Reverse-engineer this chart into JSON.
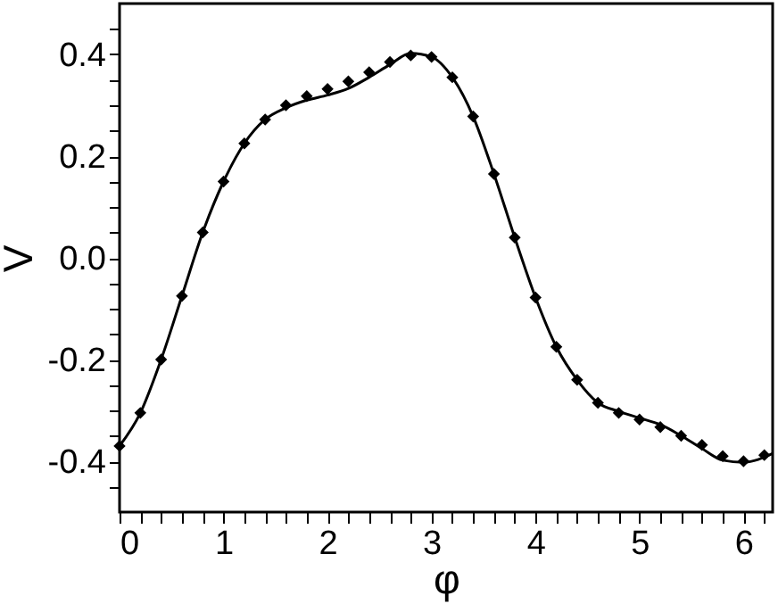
{
  "chart_data": {
    "type": "scatter",
    "xlabel": "φ",
    "ylabel": "V",
    "xlim": [
      0,
      6.28
    ],
    "ylim": [
      -0.5,
      0.5
    ],
    "xticks": [
      0,
      {
        "value": 0.2,
        "label": null
      },
      {
        "value": 0.4,
        "label": null
      },
      {
        "value": 0.6,
        "label": null
      },
      {
        "value": 0.8,
        "label": null
      },
      1,
      {
        "value": 1.2,
        "label": null
      },
      {
        "value": 1.4,
        "label": null
      },
      {
        "value": 1.6,
        "label": null
      },
      {
        "value": 1.8,
        "label": null
      },
      2,
      {
        "value": 2.2,
        "label": null
      },
      {
        "value": 2.4,
        "label": null
      },
      {
        "value": 2.6,
        "label": null
      },
      {
        "value": 2.8,
        "label": null
      },
      3,
      {
        "value": 3.2,
        "label": null
      },
      {
        "value": 3.4,
        "label": null
      },
      {
        "value": 3.6,
        "label": null
      },
      {
        "value": 3.8,
        "label": null
      },
      4,
      {
        "value": 4.2,
        "label": null
      },
      {
        "value": 4.4,
        "label": null
      },
      {
        "value": 4.6,
        "label": null
      },
      {
        "value": 4.8,
        "label": null
      },
      5,
      {
        "value": 5.2,
        "label": null
      },
      {
        "value": 5.4,
        "label": null
      },
      {
        "value": 5.6,
        "label": null
      },
      {
        "value": 5.8,
        "label": null
      },
      6,
      {
        "value": 6.2,
        "label": null
      }
    ],
    "yticks": [
      {
        "value": -0.45,
        "label": null
      },
      {
        "value": -0.4,
        "label": "-0.4"
      },
      {
        "value": -0.35,
        "label": null
      },
      {
        "value": -0.3,
        "label": null
      },
      {
        "value": -0.25,
        "label": null
      },
      {
        "value": -0.2,
        "label": "-0.2"
      },
      {
        "value": -0.15,
        "label": null
      },
      {
        "value": -0.1,
        "label": null
      },
      {
        "value": -0.05,
        "label": null
      },
      {
        "value": 0,
        "label": "0.0"
      },
      {
        "value": 0.05,
        "label": null
      },
      {
        "value": 0.1,
        "label": null
      },
      {
        "value": 0.15,
        "label": null
      },
      {
        "value": 0.2,
        "label": "0.2"
      },
      {
        "value": 0.25,
        "label": null
      },
      {
        "value": 0.3,
        "label": null
      },
      {
        "value": 0.35,
        "label": null
      },
      {
        "value": 0.4,
        "label": "0.4"
      },
      {
        "value": 0.45,
        "label": null
      }
    ],
    "series": [
      {
        "marker": "diamond",
        "color": "#000000",
        "x": [
          0,
          0.2,
          0.4,
          0.6,
          0.8,
          1.0,
          1.2,
          1.4,
          1.6,
          1.8,
          2.0,
          2.2,
          2.4,
          2.6,
          2.8,
          3.0,
          3.2,
          3.4,
          3.6,
          3.8,
          4.0,
          4.2,
          4.4,
          4.6,
          4.8,
          5.0,
          5.2,
          5.4,
          5.6,
          5.8,
          6.0,
          6.2
        ],
        "values": [
          -0.37,
          -0.305,
          -0.2,
          -0.075,
          0.05,
          0.15,
          0.225,
          0.272,
          0.3,
          0.318,
          0.332,
          0.347,
          0.365,
          0.385,
          0.398,
          0.395,
          0.355,
          0.278,
          0.165,
          0.04,
          -0.078,
          -0.175,
          -0.24,
          -0.285,
          -0.305,
          -0.318,
          -0.333,
          -0.35,
          -0.368,
          -0.39,
          -0.4,
          -0.388
        ]
      },
      {
        "type": "line",
        "line_style": "solid",
        "color": "#000000",
        "x": [
          0,
          0.2,
          0.4,
          0.6,
          0.8,
          1.0,
          1.2,
          1.4,
          1.6,
          1.8,
          2.0,
          2.2,
          2.4,
          2.6,
          2.8,
          3.0,
          3.2,
          3.4,
          3.6,
          3.8,
          4.0,
          4.2,
          4.4,
          4.6,
          4.8,
          5.0,
          5.2,
          5.4,
          5.6,
          5.8,
          6.0,
          6.28
        ],
        "values": [
          -0.37,
          -0.305,
          -0.2,
          -0.075,
          0.05,
          0.15,
          0.225,
          0.272,
          0.295,
          0.31,
          0.32,
          0.333,
          0.355,
          0.38,
          0.402,
          0.395,
          0.355,
          0.278,
          0.165,
          0.04,
          -0.078,
          -0.175,
          -0.24,
          -0.285,
          -0.302,
          -0.315,
          -0.328,
          -0.35,
          -0.375,
          -0.398,
          -0.402,
          -0.385
        ]
      }
    ]
  }
}
